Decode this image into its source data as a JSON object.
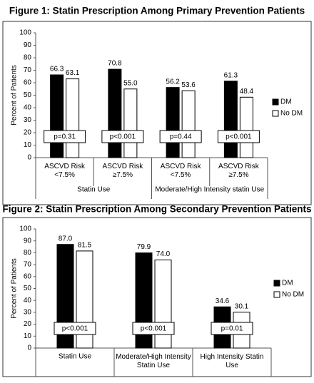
{
  "chart_data": [
    {
      "type": "bar",
      "title": "Figure 1: Statin Prescription Among Primary Prevention Patients",
      "y_label": "Percent of Patients",
      "categories": [
        "ASCVD Risk\n<7.5%",
        "ASCVD Risk\n≥7.5%",
        "ASCVD Risk\n<7.5%",
        "ASCVD Risk\n≥7.5%"
      ],
      "groups": [
        "Statin Use",
        "Moderate/High Intensity statin Use"
      ],
      "annotations": [
        "p=0.31",
        "p<0.001",
        "p=0.44",
        "p<0.001"
      ],
      "series": [
        {
          "name": "DM",
          "color": "#000000",
          "values": [
            66.3,
            70.8,
            56.2,
            61.3
          ],
          "value_labels": [
            "66.3",
            "70.8",
            "56.2",
            "61.3"
          ]
        },
        {
          "name": "No DM",
          "color": "#ffffff",
          "values": [
            63.1,
            55.0,
            53.6,
            48.4
          ],
          "value_labels": [
            "63.1",
            "55.0",
            "53.6",
            "48.4"
          ]
        }
      ],
      "ylim": [
        0,
        100
      ],
      "yticks": [
        0,
        10,
        20,
        30,
        40,
        50,
        60,
        70,
        80,
        90,
        100
      ],
      "grid": false,
      "legend": "right"
    },
    {
      "type": "bar",
      "title": "Figure 2: Statin Prescription Among Secondary Prevention Patients",
      "y_label": "Percent of Patients",
      "categories": [
        "Statin Use",
        "Moderate/High Intensity\nStatin Use",
        "High Intensity Statin\nUse"
      ],
      "annotations": [
        "p<0.001",
        "p<0.001",
        "p=0.01"
      ],
      "series": [
        {
          "name": "DM",
          "color": "#000000",
          "values": [
            87.0,
            79.9,
            34.6
          ],
          "value_labels": [
            "87.0",
            "79.9",
            "34.6"
          ]
        },
        {
          "name": "No DM",
          "color": "#ffffff",
          "values": [
            81.5,
            74.0,
            30.1
          ],
          "value_labels": [
            "81.5",
            "74.0",
            "30.1"
          ]
        }
      ],
      "ylim": [
        0,
        100
      ],
      "yticks": [
        0,
        10,
        20,
        30,
        40,
        50,
        60,
        70,
        80,
        90,
        100
      ],
      "grid": false,
      "legend": "right"
    }
  ]
}
